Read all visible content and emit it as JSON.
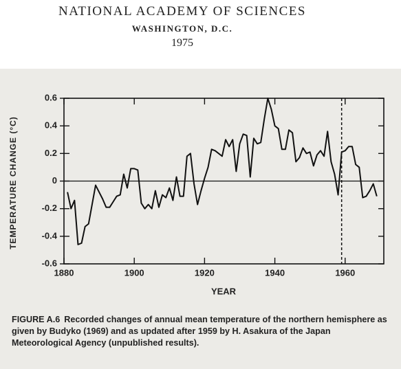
{
  "header": {
    "title": "NATIONAL ACADEMY OF SCIENCES",
    "place": "WASHINGTON, D.C.",
    "year": "1975"
  },
  "chart_data": {
    "type": "line",
    "xlabel": "YEAR",
    "ylabel": "TEMPERATURE CHANGE (°C)",
    "figure_label": "FIGURE A.6",
    "caption": "Recorded changes of annual mean temperature of the northern hemisphere as given by Budyko (1969) and as updated after 1959 by H. Asakura of the Japan Meteorological Agency (unpublished results).",
    "x": [
      1881,
      1882,
      1883,
      1884,
      1885,
      1886,
      1887,
      1888,
      1889,
      1890,
      1891,
      1892,
      1893,
      1894,
      1895,
      1896,
      1897,
      1898,
      1899,
      1900,
      1901,
      1902,
      1903,
      1904,
      1905,
      1906,
      1907,
      1908,
      1909,
      1910,
      1911,
      1912,
      1913,
      1914,
      1915,
      1916,
      1917,
      1918,
      1919,
      1920,
      1921,
      1922,
      1923,
      1924,
      1925,
      1926,
      1927,
      1928,
      1929,
      1930,
      1931,
      1932,
      1933,
      1934,
      1935,
      1936,
      1937,
      1938,
      1939,
      1940,
      1941,
      1942,
      1943,
      1944,
      1945,
      1946,
      1947,
      1948,
      1949,
      1950,
      1951,
      1952,
      1953,
      1954,
      1955,
      1956,
      1957,
      1958,
      1959,
      1960,
      1961,
      1962,
      1963,
      1964,
      1965,
      1966,
      1967,
      1968,
      1969
    ],
    "series": [
      {
        "color": "#111111",
        "values": [
          -0.08,
          -0.2,
          -0.14,
          -0.46,
          -0.45,
          -0.33,
          -0.31,
          -0.17,
          -0.03,
          -0.08,
          -0.13,
          -0.19,
          -0.19,
          -0.15,
          -0.11,
          -0.1,
          0.05,
          -0.05,
          0.09,
          0.09,
          0.08,
          -0.16,
          -0.2,
          -0.17,
          -0.2,
          -0.07,
          -0.19,
          -0.1,
          -0.12,
          -0.05,
          -0.14,
          0.03,
          -0.11,
          -0.11,
          0.18,
          0.2,
          -0.02,
          -0.17,
          -0.07,
          0.02,
          0.1,
          0.23,
          0.22,
          0.2,
          0.18,
          0.3,
          0.25,
          0.3,
          0.07,
          0.27,
          0.34,
          0.33,
          0.03,
          0.31,
          0.27,
          0.28,
          0.45,
          0.6,
          0.52,
          0.4,
          0.38,
          0.23,
          0.23,
          0.37,
          0.35,
          0.14,
          0.17,
          0.24,
          0.2,
          0.21,
          0.11,
          0.19,
          0.22,
          0.18,
          0.36,
          0.14,
          0.05,
          -0.1,
          0.21,
          0.22,
          0.25,
          0.25,
          0.12,
          0.1,
          -0.12,
          -0.11,
          -0.07,
          -0.02,
          -0.11
        ]
      }
    ],
    "xlim": [
      1880,
      1971
    ],
    "ylim": [
      -0.6,
      0.6
    ],
    "xticks": [
      1880,
      1900,
      1920,
      1940,
      1960
    ],
    "yticks": [
      0.6,
      0.4,
      0.2,
      0,
      -0.2,
      -0.4,
      -0.6
    ],
    "hline": 0,
    "vline": 1959,
    "vline_style": "dashed",
    "grid": false
  }
}
